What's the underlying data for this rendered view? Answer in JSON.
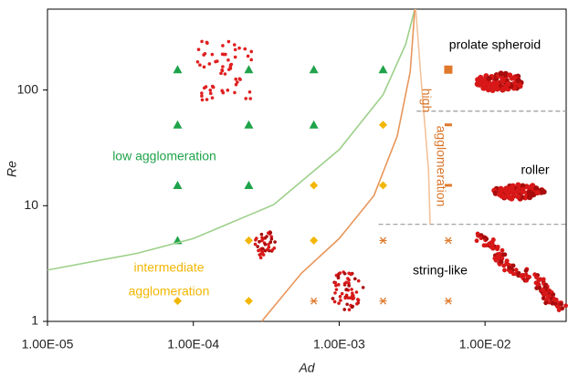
{
  "chart_data": {
    "type": "scatter",
    "x_label": "Ad",
    "y_label": "Re",
    "xscale": "log",
    "yscale": "log",
    "xlim": [
      1e-05,
      0.036
    ],
    "ylim": [
      1,
      500
    ],
    "xticks": [
      {
        "value": 1e-05,
        "label": "1.00E-05"
      },
      {
        "value": 0.0001,
        "label": "1.00E-04"
      },
      {
        "value": 0.001,
        "label": "1.00E-03"
      },
      {
        "value": 0.01,
        "label": "1.00E-02"
      }
    ],
    "yticks": [
      1,
      10,
      100
    ],
    "series": [
      {
        "marker": "triangle",
        "color": "#1fa34a",
        "x": [
          7.8e-05,
          0.00024,
          0.00067,
          0.002,
          7.8e-05,
          0.00024,
          0.00067,
          7.8e-05,
          0.00024,
          7.8e-05
        ],
        "y": [
          150,
          150,
          150,
          150,
          50,
          50,
          50,
          15,
          15,
          5
        ]
      },
      {
        "marker": "diamond",
        "color": "#f2b705",
        "x": [
          0.002,
          0.00067,
          0.002,
          0.00024,
          0.00067,
          7.8e-05,
          0.00024
        ],
        "y": [
          50,
          15,
          15,
          5,
          5,
          1.5,
          1.5
        ]
      },
      {
        "marker": "asterisk",
        "color": "#e0782a",
        "x": [
          0.002,
          0.0056,
          0.00067,
          0.002,
          0.0056
        ],
        "y": [
          5,
          5,
          1.5,
          1.5,
          1.5
        ]
      },
      {
        "marker": "square",
        "color": "#e0782a",
        "x": [
          0.0056
        ],
        "y": [
          150
        ]
      },
      {
        "marker": "dash",
        "color": "#e0782a",
        "x": [
          0.0056,
          0.0056
        ],
        "y": [
          50,
          15
        ]
      },
      {
        "marker": "line",
        "color": "#9dd08a",
        "x": [
          1e-05,
          4.1e-05,
          0.0001,
          0.000355,
          0.001,
          0.002,
          0.00286,
          0.0033
        ],
        "y": [
          2.78,
          3.87,
          5.2,
          10.2,
          30.5,
          91,
          249,
          500
        ]
      },
      {
        "marker": "line",
        "color": "#e8965a",
        "x": [
          0.000294,
          0.00055,
          0.001,
          0.00173,
          0.0025,
          0.00307,
          0.0033
        ],
        "y": [
          1,
          2.6,
          5.2,
          12.2,
          40,
          144,
          500
        ]
      },
      {
        "marker": "line",
        "color": "#f3c29a",
        "x": [
          0.00335,
          0.0036,
          0.0041,
          0.0042
        ],
        "y": [
          500,
          150,
          20,
          7
        ]
      },
      {
        "marker": "dashed",
        "color": "#999999",
        "x": [
          0.0034,
          0.036
        ],
        "y": [
          65.6,
          65.6
        ]
      },
      {
        "marker": "dashed",
        "color": "#999999",
        "x": [
          0.00186,
          0.036
        ],
        "y": [
          6.9,
          6.9
        ]
      }
    ],
    "annotations": [
      {
        "text": "low agglomeration",
        "color": "#1fa34a"
      },
      {
        "text": "intermediate",
        "color": "#f2b705"
      },
      {
        "text": "agglomeration",
        "color": "#f2b705"
      },
      {
        "text": "high",
        "color": "#d9752a"
      },
      {
        "text": "agglomeration",
        "color": "#d9752a"
      },
      {
        "text": "prolate spheroid",
        "color": "#000000"
      },
      {
        "text": "roller",
        "color": "#000000"
      },
      {
        "text": "string-like",
        "color": "#000000"
      }
    ]
  }
}
